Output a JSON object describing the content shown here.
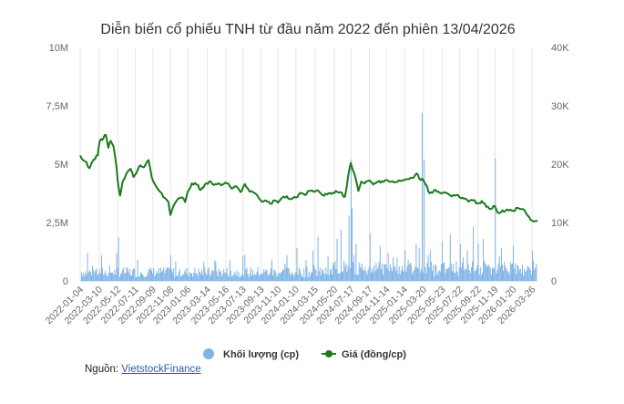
{
  "chart_data": {
    "type": "line+bar",
    "title": "Diễn biến cổ phiếu TNH từ đầu năm 2022 đến phiên 13/04/2026",
    "left_axis": {
      "ticks": [
        "0",
        "2,5M",
        "5M",
        "7,5M",
        "10M"
      ],
      "values": [
        0,
        2500000,
        5000000,
        7500000,
        10000000
      ],
      "range": [
        0,
        10000000
      ]
    },
    "right_axis": {
      "ticks": [
        "0",
        "10K",
        "20K",
        "30K",
        "40K"
      ],
      "values": [
        0,
        10000,
        20000,
        30000,
        40000
      ],
      "range": [
        0,
        40000
      ]
    },
    "x_ticks": [
      "2022-01-04",
      "2022-03-10",
      "2022-05-12",
      "2022-07-11",
      "2022-09-09",
      "2022-11-08",
      "2023-01-06",
      "2023-03-14",
      "2023-05-16",
      "2023-07-13",
      "2023-09-13",
      "2023-11-10",
      "2024-01-10",
      "2024-03-15",
      "2024-05-20",
      "2024-07-17",
      "2024-09-17",
      "2024-11-14",
      "2025-01-14",
      "2025-03-20",
      "2025-05-23",
      "2025-07-22",
      "2025-09-22",
      "2025-11-19",
      "2026-01-20",
      "2026-03-26"
    ],
    "x_range": [
      "2022-01-04",
      "2026-04-13"
    ],
    "price_series": {
      "name": "Giá (đồng/cp)",
      "color": "#1a7a1a",
      "points": [
        [
          "2022-01-04",
          21500
        ],
        [
          "2022-01-20",
          20500
        ],
        [
          "2022-02-05",
          19300
        ],
        [
          "2022-02-20",
          20800
        ],
        [
          "2022-03-05",
          21500
        ],
        [
          "2022-03-12",
          24000
        ],
        [
          "2022-03-25",
          24500
        ],
        [
          "2022-04-02",
          25000
        ],
        [
          "2022-04-10",
          22800
        ],
        [
          "2022-04-18",
          24000
        ],
        [
          "2022-04-28",
          23000
        ],
        [
          "2022-05-08",
          19500
        ],
        [
          "2022-05-12",
          17200
        ],
        [
          "2022-05-20",
          14600
        ],
        [
          "2022-05-28",
          16800
        ],
        [
          "2022-06-10",
          18300
        ],
        [
          "2022-06-25",
          19200
        ],
        [
          "2022-07-05",
          17800
        ],
        [
          "2022-07-15",
          18500
        ],
        [
          "2022-07-28",
          19800
        ],
        [
          "2022-08-10",
          19500
        ],
        [
          "2022-08-25",
          20700
        ],
        [
          "2022-09-05",
          17800
        ],
        [
          "2022-09-20",
          16200
        ],
        [
          "2022-10-05",
          15200
        ],
        [
          "2022-10-20",
          14200
        ],
        [
          "2022-11-01",
          13500
        ],
        [
          "2022-11-08",
          11300
        ],
        [
          "2022-11-18",
          12800
        ],
        [
          "2022-11-30",
          13800
        ],
        [
          "2022-12-15",
          14300
        ],
        [
          "2022-12-28",
          13500
        ],
        [
          "2023-01-06",
          15300
        ],
        [
          "2023-01-20",
          16700
        ],
        [
          "2023-02-05",
          16500
        ],
        [
          "2023-02-20",
          15600
        ],
        [
          "2023-03-05",
          16500
        ],
        [
          "2023-03-20",
          17000
        ],
        [
          "2023-04-05",
          16400
        ],
        [
          "2023-04-20",
          16700
        ],
        [
          "2023-05-05",
          16500
        ],
        [
          "2023-05-20",
          16700
        ],
        [
          "2023-06-05",
          15800
        ],
        [
          "2023-06-20",
          16200
        ],
        [
          "2023-07-05",
          15200
        ],
        [
          "2023-07-20",
          16600
        ],
        [
          "2023-08-05",
          15300
        ],
        [
          "2023-08-20",
          15100
        ],
        [
          "2023-09-05",
          14200
        ],
        [
          "2023-09-15",
          13600
        ],
        [
          "2023-09-30",
          13800
        ],
        [
          "2023-10-15",
          13200
        ],
        [
          "2023-10-30",
          13800
        ],
        [
          "2023-11-10",
          13400
        ],
        [
          "2023-11-25",
          14300
        ],
        [
          "2023-12-10",
          14500
        ],
        [
          "2023-12-25",
          14000
        ],
        [
          "2024-01-10",
          14300
        ],
        [
          "2024-01-25",
          15100
        ],
        [
          "2024-02-10",
          14700
        ],
        [
          "2024-02-25",
          15400
        ],
        [
          "2024-03-10",
          15300
        ],
        [
          "2024-03-25",
          15500
        ],
        [
          "2024-04-10",
          14700
        ],
        [
          "2024-04-25",
          14800
        ],
        [
          "2024-05-10",
          14900
        ],
        [
          "2024-05-25",
          15400
        ],
        [
          "2024-06-10",
          15200
        ],
        [
          "2024-06-25",
          14400
        ],
        [
          "2024-07-01",
          16000
        ],
        [
          "2024-07-08",
          18500
        ],
        [
          "2024-07-15",
          20200
        ],
        [
          "2024-07-22",
          19000
        ],
        [
          "2024-08-01",
          17500
        ],
        [
          "2024-08-10",
          15400
        ],
        [
          "2024-08-20",
          17000
        ],
        [
          "2024-09-01",
          16700
        ],
        [
          "2024-09-15",
          17200
        ],
        [
          "2024-09-30",
          16500
        ],
        [
          "2024-10-15",
          17000
        ],
        [
          "2024-10-30",
          17100
        ],
        [
          "2024-11-14",
          17300
        ],
        [
          "2024-11-30",
          17000
        ],
        [
          "2024-12-15",
          16900
        ],
        [
          "2025-01-01",
          17100
        ],
        [
          "2025-01-15",
          17300
        ],
        [
          "2025-02-01",
          17500
        ],
        [
          "2025-02-15",
          17700
        ],
        [
          "2025-02-25",
          18400
        ],
        [
          "2025-03-05",
          17600
        ],
        [
          "2025-03-20",
          17200
        ],
        [
          "2025-04-01",
          16200
        ],
        [
          "2025-04-10",
          15000
        ],
        [
          "2025-04-25",
          15500
        ],
        [
          "2025-05-10",
          15300
        ],
        [
          "2025-05-25",
          15100
        ],
        [
          "2025-06-10",
          15000
        ],
        [
          "2025-06-25",
          14500
        ],
        [
          "2025-07-10",
          14700
        ],
        [
          "2025-07-22",
          14300
        ],
        [
          "2025-08-05",
          14100
        ],
        [
          "2025-08-20",
          13600
        ],
        [
          "2025-09-05",
          13800
        ],
        [
          "2025-09-22",
          13300
        ],
        [
          "2025-10-05",
          13700
        ],
        [
          "2025-10-20",
          12700
        ],
        [
          "2025-11-05",
          12300
        ],
        [
          "2025-11-19",
          12800
        ],
        [
          "2025-11-28",
          11700
        ],
        [
          "2025-12-10",
          11800
        ],
        [
          "2025-12-25",
          12000
        ],
        [
          "2026-01-10",
          12200
        ],
        [
          "2026-01-20",
          12000
        ],
        [
          "2026-02-05",
          12500
        ],
        [
          "2026-02-20",
          12300
        ],
        [
          "2026-03-05",
          11600
        ],
        [
          "2026-03-15",
          11000
        ],
        [
          "2026-03-26",
          10300
        ],
        [
          "2026-04-05",
          10200
        ],
        [
          "2026-04-13",
          10300
        ]
      ]
    },
    "volume_series": {
      "name": "Khối lượng (cp)",
      "color": "#7fb3e6",
      "spikes": [
        [
          "2022-01-28",
          1200000
        ],
        [
          "2022-03-18",
          1100000
        ],
        [
          "2022-05-16",
          1850000
        ],
        [
          "2022-07-20",
          900000
        ],
        [
          "2022-11-08",
          1100000
        ],
        [
          "2023-04-10",
          800000
        ],
        [
          "2023-10-20",
          900000
        ],
        [
          "2023-12-10",
          1100000
        ],
        [
          "2024-01-15",
          1400000
        ],
        [
          "2024-02-10",
          900000
        ],
        [
          "2024-03-05",
          1300000
        ],
        [
          "2024-03-25",
          1900000
        ],
        [
          "2024-04-22",
          1250000
        ],
        [
          "2024-05-28",
          1800000
        ],
        [
          "2024-06-12",
          2200000
        ],
        [
          "2024-06-28",
          1400000
        ],
        [
          "2024-07-08",
          2800000
        ],
        [
          "2024-07-15",
          5200000
        ],
        [
          "2024-07-19",
          3100000
        ],
        [
          "2024-08-01",
          1600000
        ],
        [
          "2024-09-17",
          2050000
        ],
        [
          "2024-10-22",
          1500000
        ],
        [
          "2024-11-20",
          1200000
        ],
        [
          "2025-01-14",
          1300000
        ],
        [
          "2025-02-20",
          1600000
        ],
        [
          "2025-03-05",
          1400000
        ],
        [
          "2025-03-14",
          7200000
        ],
        [
          "2025-03-20",
          5200000
        ],
        [
          "2025-04-05",
          1100000
        ],
        [
          "2025-05-23",
          1700000
        ],
        [
          "2025-06-18",
          2000000
        ],
        [
          "2025-07-22",
          1600000
        ],
        [
          "2025-08-18",
          1300000
        ],
        [
          "2025-09-05",
          2300000
        ],
        [
          "2025-09-22",
          1600000
        ],
        [
          "2025-10-08",
          1800000
        ],
        [
          "2025-11-19",
          5250000
        ],
        [
          "2025-12-10",
          1400000
        ],
        [
          "2026-01-20",
          1500000
        ],
        [
          "2026-03-26",
          1300000
        ]
      ]
    },
    "legend": [
      {
        "label": "Khối lượng (cp)",
        "marker": "circle",
        "color": "#7fb3e6"
      },
      {
        "label": "Giá (đồng/cp)",
        "marker": "line-dot",
        "color": "#1a7a1a"
      }
    ],
    "grid": "vertical"
  },
  "source": {
    "label": "Nguồn:",
    "link_text": "VietstockFinance"
  }
}
